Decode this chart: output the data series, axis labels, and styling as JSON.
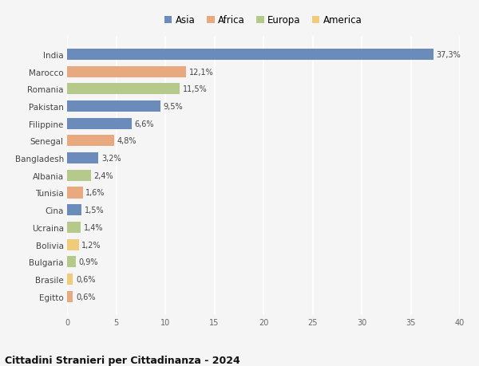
{
  "countries": [
    "India",
    "Marocco",
    "Romania",
    "Pakistan",
    "Filippine",
    "Senegal",
    "Bangladesh",
    "Albania",
    "Tunisia",
    "Cina",
    "Ucraina",
    "Bolivia",
    "Bulgaria",
    "Brasile",
    "Egitto"
  ],
  "values": [
    37.3,
    12.1,
    11.5,
    9.5,
    6.6,
    4.8,
    3.2,
    2.4,
    1.6,
    1.5,
    1.4,
    1.2,
    0.9,
    0.6,
    0.6
  ],
  "labels": [
    "37,3%",
    "12,1%",
    "11,5%",
    "9,5%",
    "6,6%",
    "4,8%",
    "3,2%",
    "2,4%",
    "1,6%",
    "1,5%",
    "1,4%",
    "1,2%",
    "0,9%",
    "0,6%",
    "0,6%"
  ],
  "continents": [
    "Asia",
    "Africa",
    "Europa",
    "Asia",
    "Asia",
    "Africa",
    "Asia",
    "Europa",
    "Africa",
    "Asia",
    "Europa",
    "America",
    "Europa",
    "America",
    "Africa"
  ],
  "colors": {
    "Asia": "#6b8cba",
    "Africa": "#e8a97e",
    "Europa": "#b5c98a",
    "America": "#f0cb7a"
  },
  "title": "Cittadini Stranieri per Cittadinanza - 2024",
  "xlim": [
    0,
    40
  ],
  "xticks": [
    0,
    5,
    10,
    15,
    20,
    25,
    30,
    35,
    40
  ],
  "background_color": "#f5f5f5",
  "grid_color": "#ffffff"
}
